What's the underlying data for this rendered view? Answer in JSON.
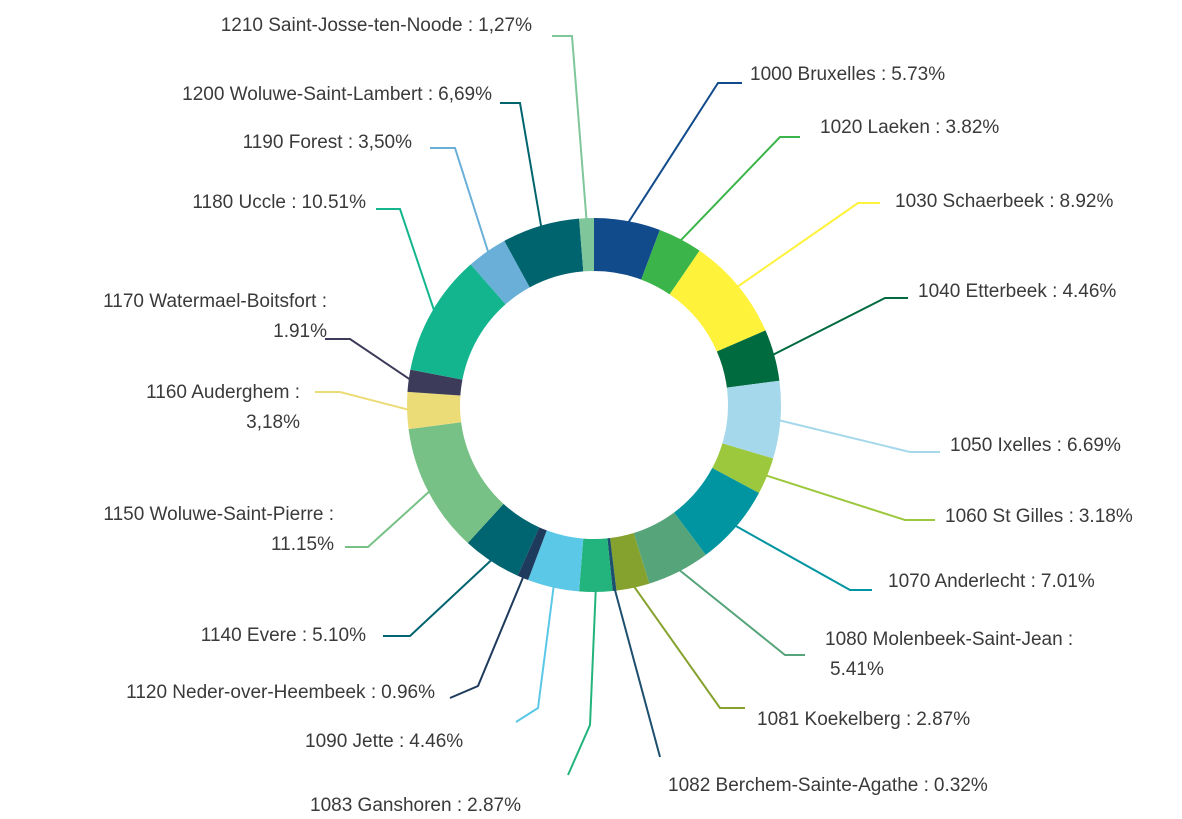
{
  "chart_data": {
    "type": "donut",
    "categories": [
      "1000 Bruxelles :",
      "1020 Laeken :",
      "1030 Schaerbeek :",
      "1040 Etterbeek :",
      "1050 Ixelles :",
      "1060 St Gilles :",
      "1070 Anderlecht :",
      "1080 Molenbeek-Saint-Jean :",
      "1081 Koekelberg :",
      "1082 Berchem-Sainte-Agathe :",
      "1083 Ganshoren :",
      "1090 Jette :",
      "1120 Neder-over-Heembeek :",
      "1140 Evere :",
      "1150 Woluwe-Saint-Pierre :",
      "1160 Auderghem :",
      "1170 Watermael-Boitsfort :",
      "1180 Uccle :",
      "1190 Forest :",
      "1200 Woluwe-Saint-Lambert :",
      "1210 Saint-Josse-ten-Noode :"
    ],
    "values": [
      5.73,
      3.82,
      8.92,
      4.46,
      6.69,
      3.18,
      7.01,
      5.41,
      2.87,
      0.32,
      2.87,
      4.46,
      0.96,
      5.1,
      11.15,
      3.18,
      1.91,
      10.51,
      3.5,
      6.69,
      1.27
    ],
    "value_labels": [
      "5.73%",
      "3.82%",
      "8.92%",
      "4.46%",
      "6.69%",
      "3.18%",
      "7.01%",
      "5.41%",
      "2.87%",
      "0.32%",
      "2.87%",
      "4.46%",
      "0.96%",
      "5.10%",
      "11.15%",
      "3,18%",
      "1.91%",
      "10.51%",
      "3,50%",
      "6,69%",
      "1,27%"
    ],
    "colors": [
      "#124b8c",
      "#3bb54a",
      "#fff23a",
      "#006b3f",
      "#a6d8ec",
      "#9bc83d",
      "#0095a0",
      "#56a47a",
      "#86a22e",
      "#1d4f6e",
      "#22b47c",
      "#5bc8e8",
      "#1e3a5c",
      "#006570",
      "#78c186",
      "#ecdc78",
      "#3c3c5a",
      "#13b58f",
      "#6aafd8",
      "#00646f",
      "#7fc79a"
    ]
  }
}
